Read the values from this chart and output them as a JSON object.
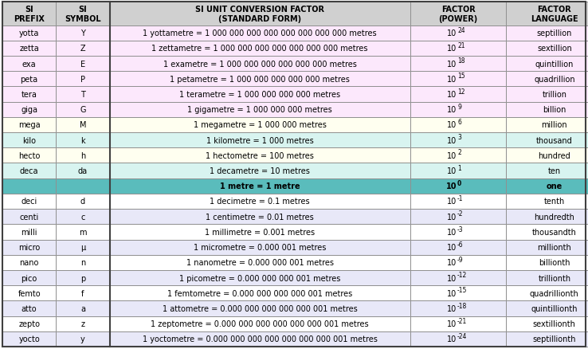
{
  "col_headers": [
    "SI\nPREFIX",
    "SI\nSYMBOL",
    "SI UNIT CONVERSION FACTOR\n(STANDARD FORM)",
    "FACTOR\n(POWER)",
    "FACTOR\nLANGUAGE"
  ],
  "rows": [
    [
      "yotta",
      "Y",
      "1 yottametre = 1 000 000 000 000 000 000 000 000 metres",
      "24",
      "septillion"
    ],
    [
      "zetta",
      "Z",
      "1 zettametre = 1 000 000 000 000 000 000 000 metres",
      "21",
      "sextillion"
    ],
    [
      "exa",
      "E",
      "1 exametre = 1 000 000 000 000 000 000 metres",
      "18",
      "quintillion"
    ],
    [
      "peta",
      "P",
      "1 petametre = 1 000 000 000 000 000 metres",
      "15",
      "quadrillion"
    ],
    [
      "tera",
      "T",
      "1 terametre = 1 000 000 000 000 metres",
      "12",
      "trillion"
    ],
    [
      "giga",
      "G",
      "1 gigametre = 1 000 000 000 metres",
      "9",
      "billion"
    ],
    [
      "mega",
      "M",
      "1 megametre = 1 000 000 metres",
      "6",
      "million"
    ],
    [
      "kilo",
      "k",
      "1 kilometre = 1 000 metres",
      "3",
      "thousand"
    ],
    [
      "hecto",
      "h",
      "1 hectometre = 100 metres",
      "2",
      "hundred"
    ],
    [
      "deca",
      "da",
      "1 decametre = 10 metres",
      "1",
      "ten"
    ],
    [
      "",
      "",
      "1 metre = 1 metre",
      "0",
      "one"
    ],
    [
      "deci",
      "d",
      "1 decimetre = 0.1 metres",
      "-1",
      "tenth"
    ],
    [
      "centi",
      "c",
      "1 centimetre = 0.01 metres",
      "-2",
      "hundredth"
    ],
    [
      "milli",
      "m",
      "1 millimetre = 0.001 metres",
      "-3",
      "thousandth"
    ],
    [
      "micro",
      "μ",
      "1 micrometre = 0.000 001 metres",
      "-6",
      "millionth"
    ],
    [
      "nano",
      "n",
      "1 nanometre = 0.000 000 001 metres",
      "-9",
      "billionth"
    ],
    [
      "pico",
      "p",
      "1 picometre = 0.000 000 000 001 metres",
      "-12",
      "trillionth"
    ],
    [
      "femto",
      "f",
      "1 femtometre = 0.000 000 000 000 001 metres",
      "-15",
      "quadrillionth"
    ],
    [
      "atto",
      "a",
      "1 attometre = 0.000 000 000 000 000 001 metres",
      "-18",
      "quintillionth"
    ],
    [
      "zepto",
      "z",
      "1 zeptometre = 0.000 000 000 000 000 000 001 metres",
      "-21",
      "sextillionth"
    ],
    [
      "yocto",
      "y",
      "1 yoctometre = 0.000 000 000 000 000 000 000 001 metres",
      "-24",
      "septillionth"
    ]
  ],
  "metre_row_idx": 10,
  "header_bg": "#d0d0d0",
  "border_color": "#909090",
  "text_color": "#000000",
  "row_bgs": [
    "#ffe8ff",
    "#ffe8ff",
    "#ffe8ff",
    "#ffe8ff",
    "#ffe8ff",
    "#ffe8ff",
    "#fff8d0",
    "#d8f0e8",
    "#fff8d0",
    "#d8f0e8",
    "#60c0c0",
    "#ffffff",
    "#e8e8ff",
    "#ffffff",
    "#e8e8ff",
    "#ffffff",
    "#e8e8ff",
    "#ffffff",
    "#e8e8ff",
    "#ffffff",
    "#e8e8ff"
  ],
  "figsize": [
    7.38,
    4.39
  ],
  "dpi": 100
}
